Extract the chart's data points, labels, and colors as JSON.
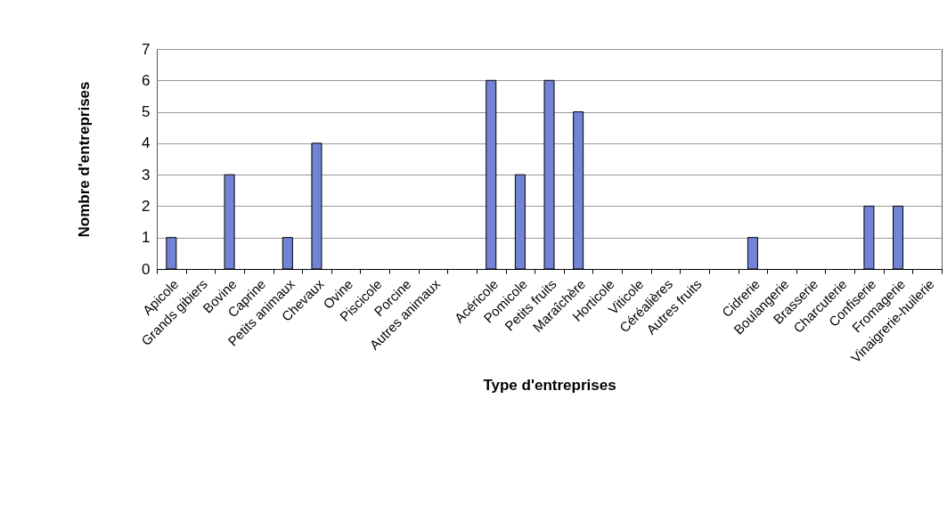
{
  "chart_data": {
    "type": "bar",
    "xlabel": "Type d'entreprises",
    "ylabel": "Nombre d'entreprises",
    "categories": [
      "Apicole",
      "Grands gibiers",
      "Bovine",
      "Caprine",
      "Petits animaux",
      "Chevaux",
      "Ovine",
      "Piscicole",
      "Porcine",
      "Autres animaux",
      null,
      "Acéricole",
      "Pomicole",
      "Petits fruits",
      "Maraîchère",
      "Horticole",
      "Viticole",
      "Céréalières",
      "Autres fruits",
      null,
      "Cidrerie",
      "Boulangerie",
      "Brasserie",
      "Charcuterie",
      "Confiserie",
      "Fromagerie",
      "Vinaigrerie-huilerie"
    ],
    "values": [
      1,
      0,
      3,
      0,
      1,
      4,
      0,
      0,
      0,
      0,
      null,
      6,
      3,
      6,
      5,
      0,
      0,
      0,
      0,
      null,
      1,
      0,
      0,
      0,
      2,
      2,
      0
    ],
    "color": "#7384d6",
    "ylim": [
      0,
      7
    ],
    "yticks": [
      0,
      1,
      2,
      3,
      4,
      5,
      6,
      7
    ],
    "grid": "y"
  }
}
